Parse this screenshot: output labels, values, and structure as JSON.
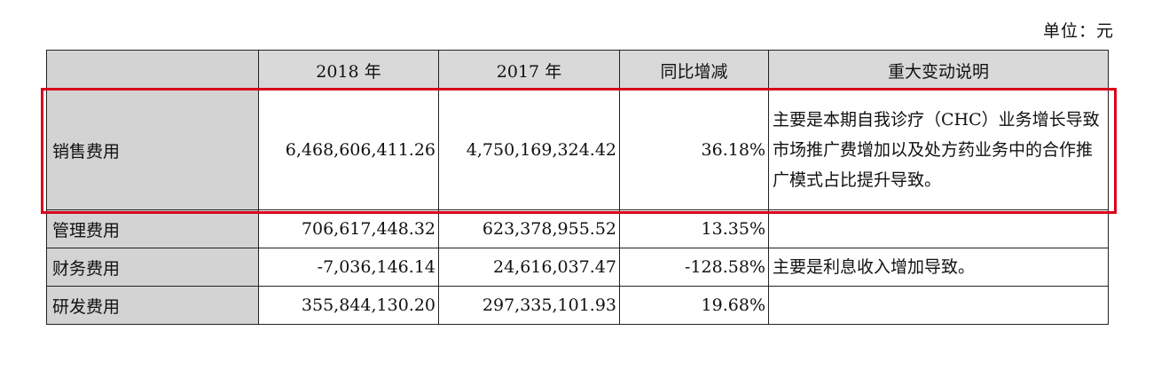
{
  "unit_label": "单位：元",
  "table": {
    "headers": [
      "",
      "2018 年",
      "2017 年",
      "同比增减",
      "重大变动说明"
    ],
    "rows": [
      {
        "item": "销售费用",
        "y2018": "6,468,606,411.26",
        "y2017": "4,750,169,324.42",
        "change": "36.18%",
        "note": "主要是本期自我诊疗（CHC）业务增长导致市场推广费增加以及处方药业务中的合作推广模式占比提升导致。"
      },
      {
        "item": "管理费用",
        "y2018": "706,617,448.32",
        "y2017": "623,378,955.52",
        "change": "13.35%",
        "note": ""
      },
      {
        "item": "财务费用",
        "y2018": "-7,036,146.14",
        "y2017": "24,616,037.47",
        "change": "-128.58%",
        "note": "主要是利息收入增加导致。"
      },
      {
        "item": "研发费用",
        "y2018": "355,844,130.20",
        "y2017": "297,335,101.93",
        "change": "19.68%",
        "note": ""
      }
    ]
  },
  "highlight": {
    "color": "#d9001b",
    "row": "销售费用"
  }
}
